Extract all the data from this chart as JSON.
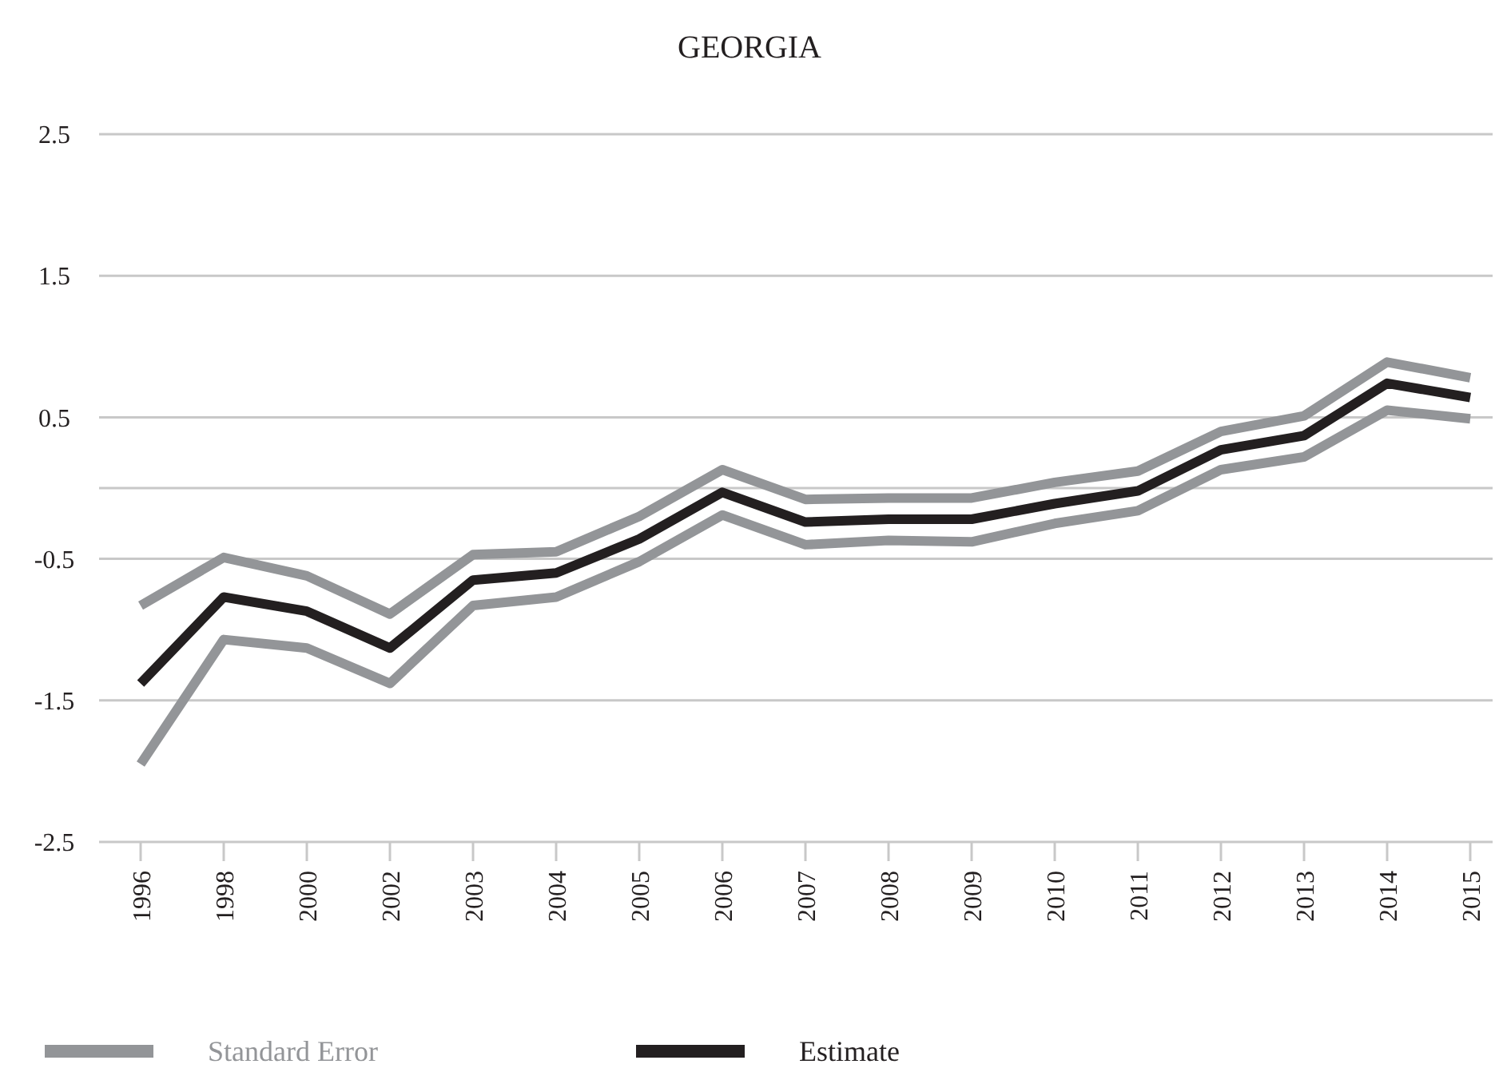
{
  "chart_data": {
    "type": "line",
    "title": "GEORGIA",
    "categories": [
      "1996",
      "1998",
      "2000",
      "2002",
      "2003",
      "2004",
      "2005",
      "2006",
      "2007",
      "2008",
      "2009",
      "2010",
      "2011",
      "2012",
      "2013",
      "2014",
      "2015"
    ],
    "series": [
      {
        "name": "Standard Error",
        "color": "#939598",
        "values": [
          -0.83,
          -0.49,
          -0.62,
          -0.89,
          -0.47,
          -0.45,
          -0.2,
          0.13,
          -0.08,
          -0.07,
          -0.07,
          0.04,
          0.12,
          0.4,
          0.51,
          0.89,
          0.78
        ]
      },
      {
        "color": "#939598",
        "values": [
          -1.95,
          -1.07,
          -1.13,
          -1.38,
          -0.83,
          -0.77,
          -0.52,
          -0.19,
          -0.4,
          -0.37,
          -0.38,
          -0.25,
          -0.16,
          0.13,
          0.22,
          0.55,
          0.49
        ]
      },
      {
        "name": "Estimate",
        "color": "#231f20",
        "values": [
          -1.38,
          -0.77,
          -0.87,
          -1.13,
          -0.65,
          -0.6,
          -0.36,
          -0.03,
          -0.24,
          -0.22,
          -0.22,
          -0.11,
          -0.02,
          0.27,
          0.37,
          0.74,
          0.64
        ]
      }
    ],
    "ylim": [
      -2.5,
      2.5
    ],
    "yticks": [
      -2.5,
      -1.5,
      -0.5,
      {
        "value": 0,
        "label": null
      },
      0.5,
      1.5,
      2.5
    ],
    "grid": "y",
    "legend": "bottom",
    "marker": "none",
    "line_style": "solid"
  }
}
